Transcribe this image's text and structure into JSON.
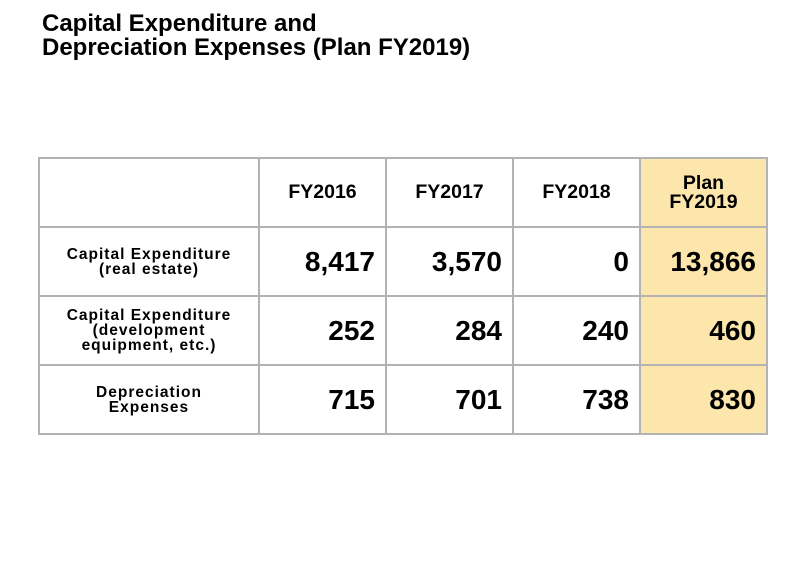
{
  "title": [
    "Capital Expenditure and",
    "Depreciation Expenses (Plan FY2019)"
  ],
  "table": {
    "header": [
      [],
      [
        "FY2016"
      ],
      [
        "FY2017"
      ],
      [
        "FY2018"
      ],
      [
        "Plan",
        "FY2019"
      ]
    ],
    "rows": [
      {
        "label": [
          "Capital Expenditure",
          "(real estate)"
        ],
        "cells": [
          "8,417",
          "3,570",
          "0",
          "13,866"
        ]
      },
      {
        "label": [
          "Capital Expenditure",
          "(development",
          "equipment, etc.)"
        ],
        "cells": [
          "252",
          "284",
          "240",
          "460"
        ]
      },
      {
        "label": [
          "Depreciation",
          "Expenses"
        ],
        "cells": [
          "715",
          "701",
          "738",
          "830"
        ]
      }
    ]
  }
}
